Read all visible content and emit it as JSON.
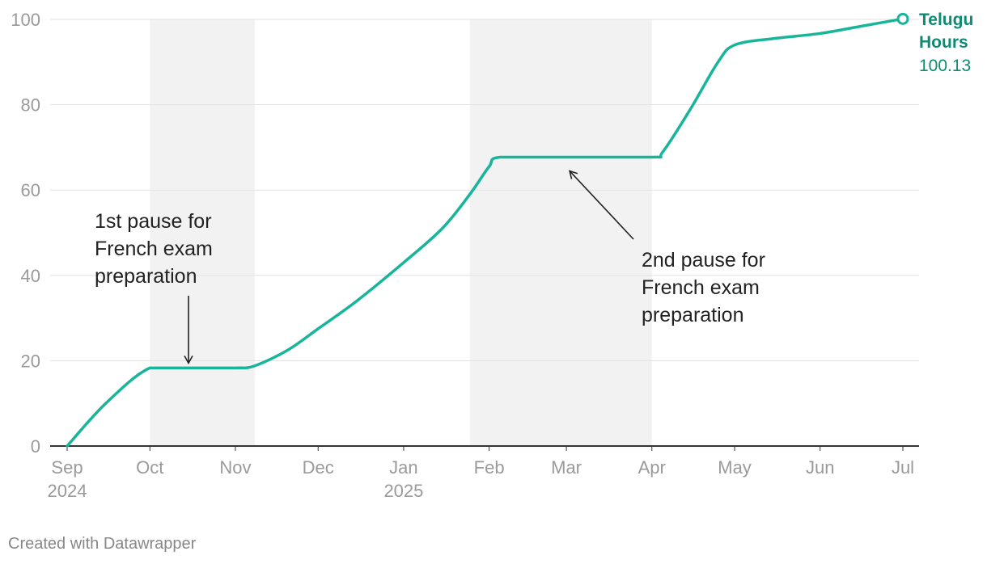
{
  "chart_data": {
    "type": "line",
    "x_type": "date",
    "ylim": [
      0,
      100
    ],
    "y_ticks": [
      0,
      20,
      40,
      60,
      80,
      100
    ],
    "x_ticks": [
      {
        "date": "2024-09-01",
        "label": "Sep",
        "sublabel": "2024"
      },
      {
        "date": "2024-10-01",
        "label": "Oct",
        "sublabel": ""
      },
      {
        "date": "2024-11-01",
        "label": "Nov",
        "sublabel": ""
      },
      {
        "date": "2024-12-01",
        "label": "Dec",
        "sublabel": ""
      },
      {
        "date": "2025-01-01",
        "label": "Jan",
        "sublabel": "2025"
      },
      {
        "date": "2025-02-01",
        "label": "Feb",
        "sublabel": ""
      },
      {
        "date": "2025-03-01",
        "label": "Mar",
        "sublabel": ""
      },
      {
        "date": "2025-04-01",
        "label": "Apr",
        "sublabel": ""
      },
      {
        "date": "2025-05-01",
        "label": "May",
        "sublabel": ""
      },
      {
        "date": "2025-06-01",
        "label": "Jun",
        "sublabel": ""
      },
      {
        "date": "2025-07-01",
        "label": "Jul",
        "sublabel": ""
      }
    ],
    "grid": true,
    "highlight_ranges": [
      {
        "start": "2024-10-01",
        "end": "2024-11-08"
      },
      {
        "start": "2025-01-25",
        "end": "2025-04-01"
      }
    ],
    "series": [
      {
        "name_line1": "Telugu",
        "name_line2": "Hours",
        "color": "#18b59a",
        "label_color": "#0f8a73",
        "final_value_label": "100.13",
        "points": [
          {
            "x": "2024-09-01",
            "y": 0
          },
          {
            "x": "2024-09-15",
            "y": 10
          },
          {
            "x": "2024-10-01",
            "y": 18.3
          },
          {
            "x": "2024-10-15",
            "y": 18.3
          },
          {
            "x": "2024-11-01",
            "y": 18.3
          },
          {
            "x": "2024-11-08",
            "y": 18.8
          },
          {
            "x": "2024-11-20",
            "y": 22.5
          },
          {
            "x": "2024-12-01",
            "y": 27.5
          },
          {
            "x": "2024-12-15",
            "y": 34
          },
          {
            "x": "2025-01-01",
            "y": 43
          },
          {
            "x": "2025-01-15",
            "y": 51
          },
          {
            "x": "2025-01-25",
            "y": 59
          },
          {
            "x": "2025-02-01",
            "y": 65.5
          },
          {
            "x": "2025-02-05",
            "y": 67.7
          },
          {
            "x": "2025-03-01",
            "y": 67.7
          },
          {
            "x": "2025-04-01",
            "y": 67.7
          },
          {
            "x": "2025-04-05",
            "y": 69
          },
          {
            "x": "2025-04-15",
            "y": 79
          },
          {
            "x": "2025-04-25",
            "y": 90
          },
          {
            "x": "2025-05-01",
            "y": 94
          },
          {
            "x": "2025-05-15",
            "y": 95.5
          },
          {
            "x": "2025-06-01",
            "y": 96.7
          },
          {
            "x": "2025-06-15",
            "y": 98.3
          },
          {
            "x": "2025-07-01",
            "y": 100.13
          }
        ]
      }
    ],
    "annotations": [
      {
        "lines": [
          "1st pause for",
          "French exam",
          "preparation"
        ],
        "target": {
          "x": "2024-10-15",
          "y": 18.3
        }
      },
      {
        "lines": [
          "2nd pause for",
          "French exam",
          "preparation"
        ],
        "target": {
          "x": "2025-03-01",
          "y": 67.7
        }
      }
    ]
  },
  "credit": "Created with Datawrapper"
}
